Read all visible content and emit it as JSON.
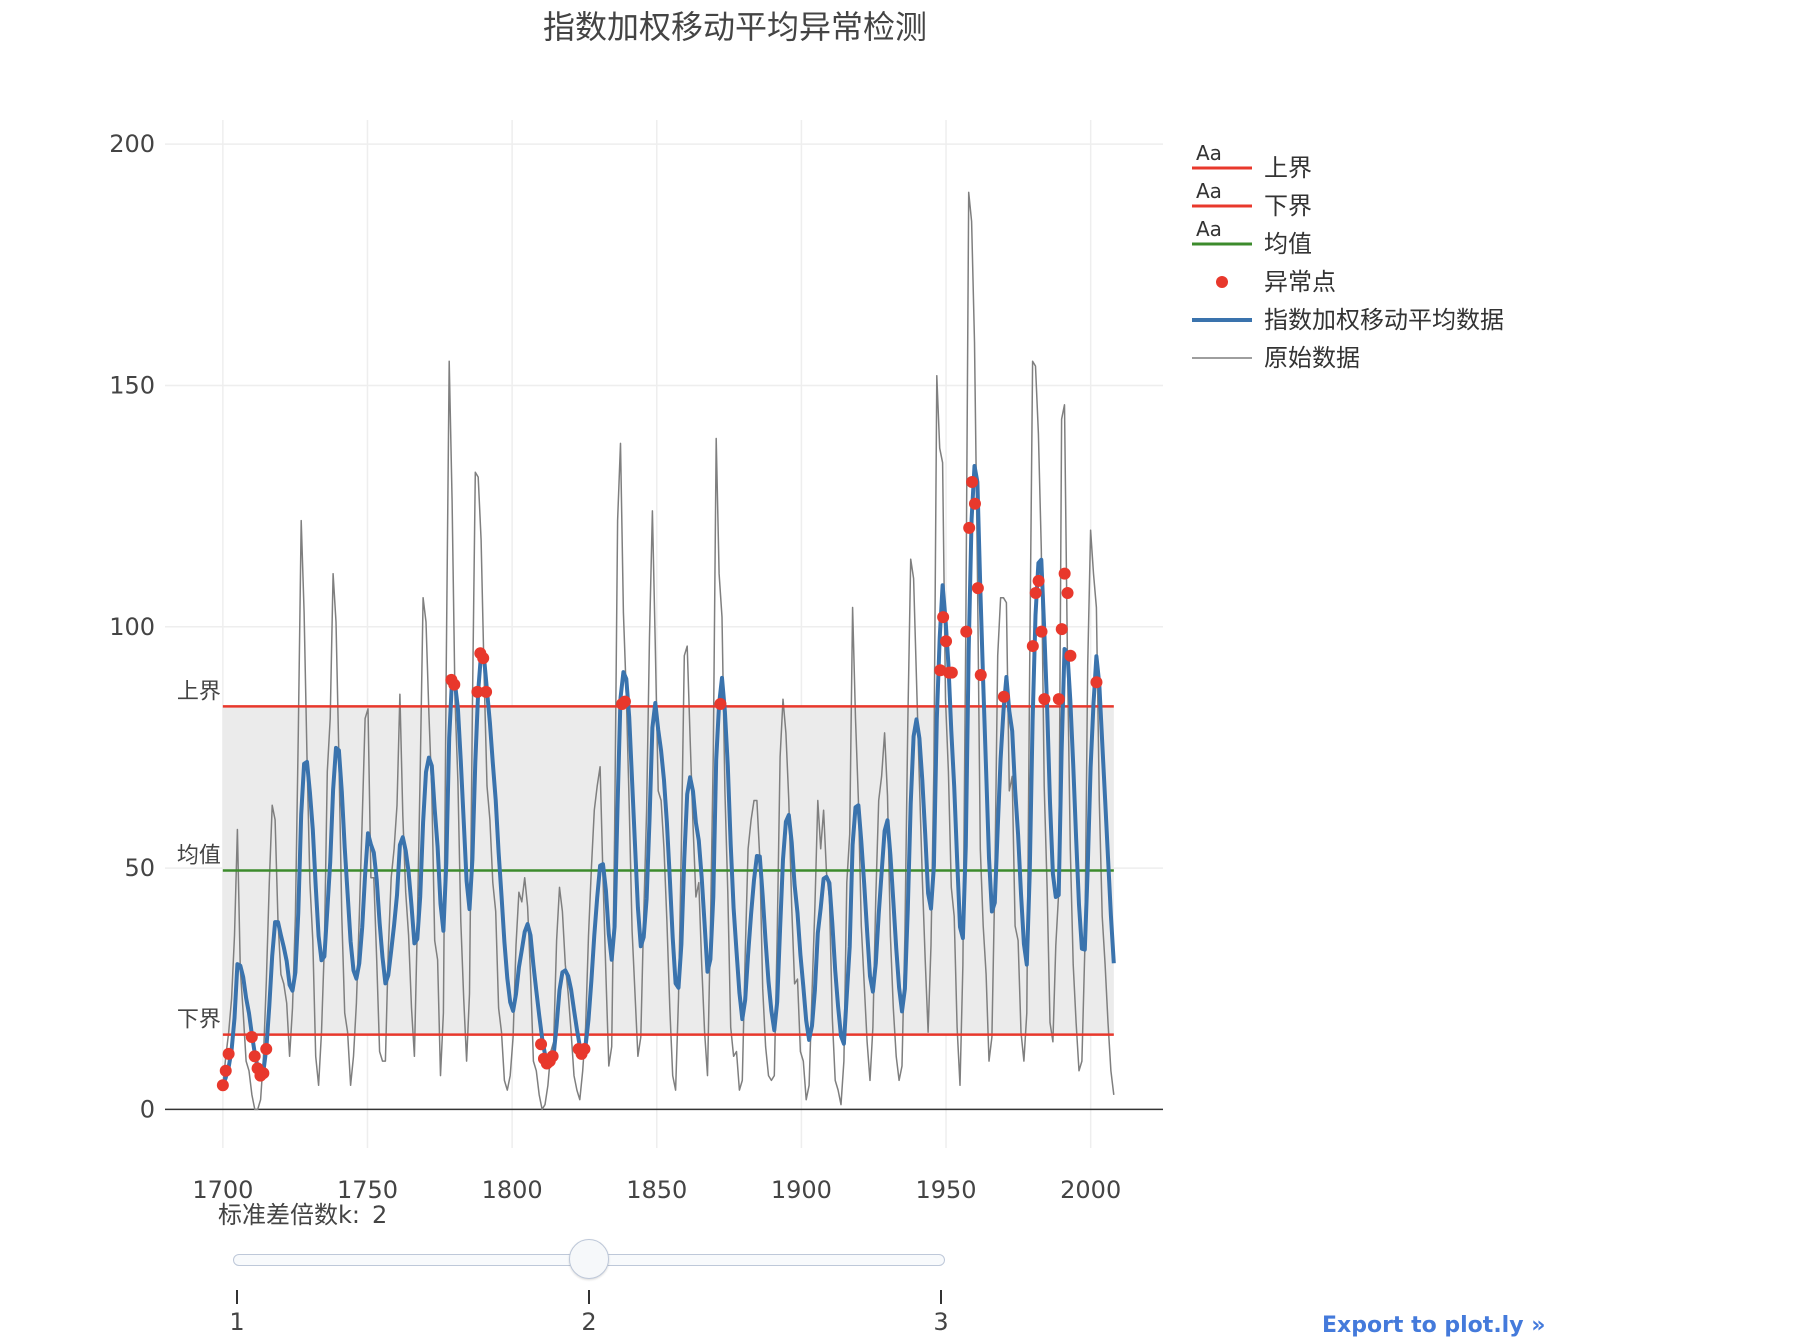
{
  "title": "指数加权移动平均异常检测",
  "chart_data": {
    "type": "line",
    "title": "指数加权移动平均异常检测",
    "xlim": [
      1680,
      2025
    ],
    "ylim": [
      -8,
      205
    ],
    "xticks": [
      1700,
      1750,
      1800,
      1850,
      1900,
      1950,
      2000
    ],
    "yticks": [
      0,
      50,
      100,
      150,
      200
    ],
    "grid": true,
    "legend_position": "right",
    "x_start": 1700,
    "x_end": 2008,
    "bands": {
      "upper": 83.5,
      "mean": 49.5,
      "lower": 15.5,
      "upper_label": "上界",
      "mean_label": "均值",
      "lower_label": "下界",
      "band_color": "#ebebeb"
    },
    "colors": {
      "upper": "#e8382c",
      "lower": "#e8382c",
      "mean": "#3c8b2c",
      "anomaly": "#e8382c",
      "ewma": "#3a73ad",
      "raw": "#7f7f7f"
    },
    "raw_data": [
      5,
      11,
      16,
      23,
      36,
      58,
      29,
      20,
      10,
      8,
      3,
      0,
      0,
      2,
      11,
      27,
      47,
      63,
      60,
      39,
      28,
      26,
      22,
      11,
      21,
      40,
      78,
      122,
      103,
      73,
      47,
      35,
      11,
      5,
      16,
      34,
      70,
      81,
      111,
      101,
      73,
      40,
      20,
      16,
      5,
      11,
      22,
      40,
      60,
      81,
      83,
      48,
      48,
      31,
      12,
      10,
      10,
      33,
      48,
      54,
      63,
      86,
      61,
      45,
      36,
      21,
      11,
      38,
      70,
      106,
      101,
      82,
      66,
      35,
      31,
      7,
      20,
      93,
      155,
      126,
      85,
      68,
      39,
      23,
      10,
      24,
      83,
      132,
      131,
      118,
      90,
      67,
      60,
      47,
      41,
      21,
      16,
      6,
      4,
      7,
      15,
      34,
      45,
      43,
      48,
      42,
      28,
      10,
      8,
      3,
      0,
      1,
      5,
      12,
      14,
      35,
      46,
      41,
      30,
      24,
      16,
      7,
      4,
      2,
      8,
      17,
      36,
      50,
      62,
      67,
      71,
      48,
      28,
      9,
      13,
      57,
      122,
      138,
      103,
      86,
      63,
      37,
      24,
      11,
      15,
      40,
      62,
      98,
      124,
      96,
      66,
      64,
      54,
      39,
      21,
      7,
      4,
      23,
      55,
      94,
      96,
      77,
      59,
      44,
      47,
      30,
      16,
      7,
      37,
      74,
      139,
      111,
      102,
      66,
      45,
      17,
      11,
      12,
      4,
      6,
      32,
      54,
      60,
      64,
      64,
      52,
      25,
      13,
      7,
      6,
      7,
      36,
      73,
      85,
      78,
      64,
      42,
      26,
      27,
      12,
      10,
      2,
      5,
      24,
      42,
      64,
      54,
      62,
      49,
      44,
      19,
      6,
      4,
      1,
      10,
      47,
      57,
      104,
      81,
      64,
      38,
      26,
      14,
      6,
      17,
      44,
      64,
      69,
      78,
      65,
      36,
      21,
      11,
      6,
      9,
      36,
      80,
      114,
      110,
      89,
      68,
      48,
      31,
      16,
      34,
      71,
      152,
      137,
      134,
      85,
      70,
      46,
      40,
      17,
      5,
      30,
      99,
      190,
      184,
      159,
      112,
      54,
      38,
      28,
      10,
      15,
      47,
      94,
      106,
      106,
      105,
      66,
      69,
      38,
      35,
      16,
      10,
      20,
      92,
      155,
      154,
      140,
      116,
      67,
      46,
      18,
      14,
      34,
      45,
      143,
      146,
      94,
      54,
      30,
      18,
      8,
      10,
      33,
      92,
      120,
      111,
      104,
      64,
      40,
      30,
      18,
      8,
      3
    ],
    "ewma_data": [
      5.0,
      6.6,
      8.8,
      12.3,
      18.9,
      30.1,
      29.8,
      27.4,
      23.1,
      19.9,
      15.5,
      11.6,
      8.7,
      7.0,
      8.0,
      12.8,
      21.4,
      31.8,
      38.8,
      38.8,
      36.1,
      33.6,
      30.7,
      25.8,
      24.6,
      28.4,
      40.8,
      61.1,
      71.6,
      72.0,
      65.7,
      58.0,
      46.3,
      35.9,
      30.9,
      31.7,
      41.3,
      51.2,
      66.2,
      74.9,
      74.4,
      65.8,
      54.3,
      44.7,
      34.8,
      28.8,
      27.1,
      30.3,
      37.7,
      48.6,
      57.2,
      54.9,
      53.2,
      47.6,
      38.7,
      31.5,
      26.1,
      27.8,
      32.9,
      38.2,
      44.4,
      54.8,
      56.4,
      53.6,
      49.2,
      42.2,
      34.4,
      35.3,
      44.0,
      59.5,
      69.9,
      72.9,
      71.2,
      62.2,
      54.4,
      42.6,
      37.0,
      51.0,
      77.0,
      89.3,
      88.2,
      83.1,
      72.1,
      59.8,
      47.3,
      41.5,
      51.8,
      71.9,
      86.7,
      94.5,
      93.4,
      86.8,
      80.1,
      71.8,
      64.1,
      53.3,
      44.3,
      34.7,
      27.2,
      22.2,
      20.4,
      23.9,
      29.4,
      33.0,
      36.8,
      38.4,
      36.1,
      29.9,
      24.6,
      19.5,
      14.8,
      11.4,
      9.9,
      10.5,
      11.4,
      17.4,
      24.7,
      28.4,
      28.8,
      27.6,
      24.8,
      20.6,
      16.6,
      13.1,
      12.0,
      13.2,
      18.6,
      26.7,
      36.1,
      43.9,
      50.5,
      50.8,
      45.4,
      36.3,
      31.0,
      37.9,
      63.2,
      85.2,
      90.6,
      89.2,
      81.3,
      68.0,
      54.8,
      41.8,
      33.8,
      35.7,
      43.6,
      59.9,
      79.1,
      84.2,
      78.7,
      74.3,
      68.2,
      59.4,
      47.9,
      35.6,
      26.1,
      25.2,
      34.2,
      52.1,
      65.3,
      68.8,
      65.9,
      59.4,
      55.7,
      48.0,
      38.4,
      28.5,
      31.1,
      44.0,
      72.5,
      84.0,
      89.4,
      82.4,
      71.2,
      54.9,
      41.7,
      32.8,
      24.2,
      18.7,
      22.7,
      32.1,
      40.5,
      47.5,
      52.5,
      52.4,
      44.2,
      34.8,
      26.5,
      20.4,
      16.4,
      22.3,
      37.5,
      51.8,
      59.6,
      61.0,
      55.3,
      46.5,
      40.7,
      32.1,
      25.5,
      18.4,
      14.4,
      17.3,
      24.7,
      36.5,
      41.7,
      47.8,
      48.2,
      46.9,
      38.6,
      28.8,
      21.3,
      15.2,
      13.6,
      23.7,
      33.7,
      54.8,
      62.6,
      63.0,
      55.5,
      46.7,
      36.9,
      27.6,
      24.4,
      30.3,
      40.4,
      49.0,
      57.7,
      59.9,
      52.7,
      43.2,
      33.5,
      25.2,
      20.3,
      25.0,
      41.5,
      63.3,
      77.3,
      80.8,
      76.9,
      68.2,
      57.1,
      44.8,
      41.6,
      50.4,
      80.9,
      97.7,
      108.6,
      101.6,
      92.2,
      78.4,
      66.9,
      51.9,
      37.8,
      35.5,
      54.6,
      95.3,
      122.3,
      133.3,
      130.0,
      108.0,
      88.4,
      70.3,
      52.1,
      41.0,
      42.8,
      58.2,
      72.6,
      82.7,
      89.6,
      82.5,
      78.4,
      66.3,
      56.9,
      44.7,
      34.3,
      30.0,
      48.7,
      80.5,
      102.4,
      113.2,
      113.9,
      99.6,
      83.5,
      63.6,
      48.8,
      44.0,
      44.4,
      74.2,
      95.4,
      94.6,
      84.8,
      71.5,
      56.3,
      42.4,
      33.3,
      33.1,
      49.9,
      70.8,
      84.1,
      93.9,
      88.1,
      76.1,
      64.3,
      52.2,
      40.2,
      30.3
    ],
    "anomalies": [
      {
        "x": 1700,
        "y": 5
      },
      {
        "x": 1701,
        "y": 8
      },
      {
        "x": 1702,
        "y": 11.5
      },
      {
        "x": 1710,
        "y": 15
      },
      {
        "x": 1711,
        "y": 11
      },
      {
        "x": 1712,
        "y": 8.5
      },
      {
        "x": 1713,
        "y": 7
      },
      {
        "x": 1714,
        "y": 7.5
      },
      {
        "x": 1715,
        "y": 12.5
      },
      {
        "x": 1779,
        "y": 89
      },
      {
        "x": 1780,
        "y": 88
      },
      {
        "x": 1788,
        "y": 86.5
      },
      {
        "x": 1789,
        "y": 94.5
      },
      {
        "x": 1790,
        "y": 93.5
      },
      {
        "x": 1791,
        "y": 86.5
      },
      {
        "x": 1810,
        "y": 13.5
      },
      {
        "x": 1811,
        "y": 10.5
      },
      {
        "x": 1812,
        "y": 9.5
      },
      {
        "x": 1813,
        "y": 10
      },
      {
        "x": 1814,
        "y": 11
      },
      {
        "x": 1823,
        "y": 12.5
      },
      {
        "x": 1824,
        "y": 11.5
      },
      {
        "x": 1825,
        "y": 12.5
      },
      {
        "x": 1838,
        "y": 84
      },
      {
        "x": 1839,
        "y": 84.5
      },
      {
        "x": 1872,
        "y": 84
      },
      {
        "x": 1948,
        "y": 91
      },
      {
        "x": 1949,
        "y": 102
      },
      {
        "x": 1950,
        "y": 97
      },
      {
        "x": 1951,
        "y": 90.5
      },
      {
        "x": 1952,
        "y": 90.5
      },
      {
        "x": 1957,
        "y": 99
      },
      {
        "x": 1958,
        "y": 120.5
      },
      {
        "x": 1959,
        "y": 130
      },
      {
        "x": 1960,
        "y": 125.5
      },
      {
        "x": 1961,
        "y": 108
      },
      {
        "x": 1962,
        "y": 90
      },
      {
        "x": 1970,
        "y": 85.5
      },
      {
        "x": 1980,
        "y": 96
      },
      {
        "x": 1981,
        "y": 107
      },
      {
        "x": 1982,
        "y": 109.5
      },
      {
        "x": 1983,
        "y": 99
      },
      {
        "x": 1984,
        "y": 85
      },
      {
        "x": 1989,
        "y": 85
      },
      {
        "x": 1990,
        "y": 99.5
      },
      {
        "x": 1991,
        "y": 111
      },
      {
        "x": 1992,
        "y": 107
      },
      {
        "x": 1993,
        "y": 94
      },
      {
        "x": 2002,
        "y": 88.5
      }
    ],
    "legend": [
      {
        "label": "上界",
        "kind": "line-aa",
        "color": "#e8382c"
      },
      {
        "label": "下界",
        "kind": "line-aa",
        "color": "#e8382c"
      },
      {
        "label": "均值",
        "kind": "line-aa",
        "color": "#3c8b2c"
      },
      {
        "label": "异常点",
        "kind": "marker",
        "color": "#e8382c"
      },
      {
        "label": "指数加权移动平均数据",
        "kind": "line-thick",
        "color": "#3a73ad"
      },
      {
        "label": "原始数据",
        "kind": "line-thin",
        "color": "#7f7f7f"
      }
    ],
    "legend_text_sample": "Aa"
  },
  "slider": {
    "label": "标准差倍数k:",
    "value": "2",
    "value_fraction": 0.5,
    "ticks": [
      "1",
      "2",
      "3"
    ]
  },
  "export_link": "Export to plot.ly »"
}
